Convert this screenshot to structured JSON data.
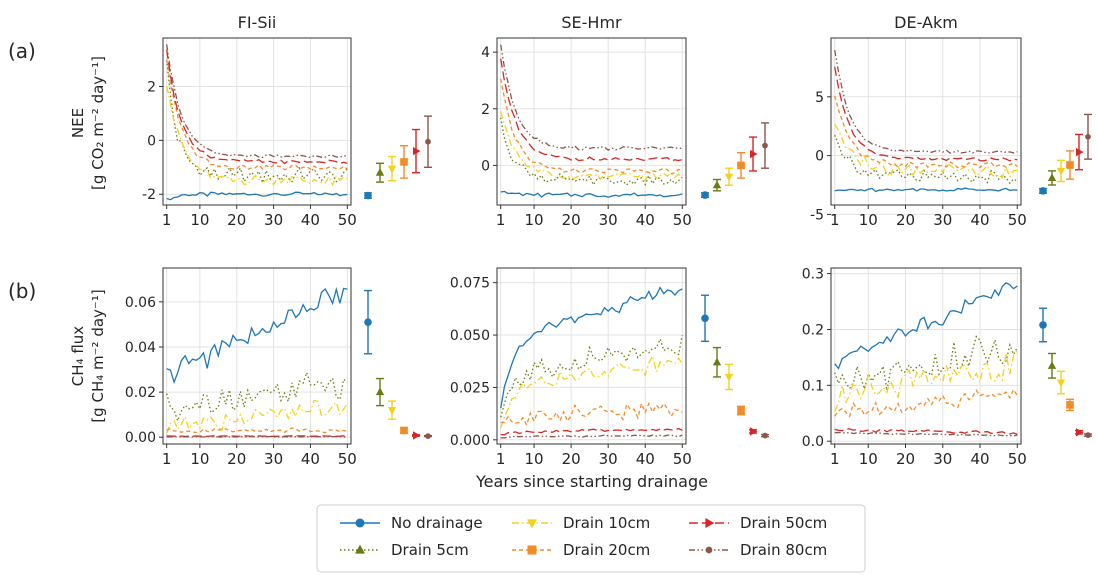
{
  "figure": {
    "panel_labels": [
      "(a)",
      "(b)"
    ],
    "shared_xlabel": "Years since starting drainage",
    "row_ylabels": [
      {
        "main": "NEE",
        "sub": "[g CO₂ m⁻² day⁻¹]"
      },
      {
        "main": "CH₄ flux",
        "sub": "[g CH₄ m⁻² day⁻¹]"
      }
    ],
    "legend": [
      {
        "label": "No drainage",
        "color": "#1f77b4",
        "marker": "circle",
        "dash": "solid"
      },
      {
        "label": "Drain 5cm",
        "color": "#6b7a12",
        "marker": "triangle-up",
        "dash": "dotted"
      },
      {
        "label": "Drain 10cm",
        "color": "#f2d21b",
        "marker": "triangle-down",
        "dash": "dashdot"
      },
      {
        "label": "Drain 20cm",
        "color": "#f28c28",
        "marker": "square",
        "dash": "dashed"
      },
      {
        "label": "Drain 50cm",
        "color": "#d62728",
        "marker": "triangle-right",
        "dash": "longdash"
      },
      {
        "label": "Drain 80cm",
        "color": "#8c564b",
        "marker": "circle-small",
        "dash": "dashdotdot"
      }
    ]
  },
  "chart_data": [
    {
      "type": "line",
      "row": 0,
      "col": 0,
      "title": "FI-Sii",
      "ylim": [
        -2.4,
        3.8
      ],
      "yticks": [
        -2,
        0,
        2
      ],
      "xlim": [
        0,
        51
      ],
      "xticks": [
        1,
        10,
        20,
        30,
        40,
        50
      ],
      "grid": true,
      "series": [
        {
          "start": -2.2,
          "end": -2.0,
          "tau": 3,
          "noise": 0.05
        },
        {
          "start": 2.8,
          "end": -1.3,
          "tau": 3,
          "noise": 0.25
        },
        {
          "start": 2.2,
          "end": -1.5,
          "tau": 4,
          "noise": 0.15
        },
        {
          "start": 3.0,
          "end": -1.0,
          "tau": 4,
          "noise": 0.08
        },
        {
          "start": 3.3,
          "end": -0.8,
          "tau": 4,
          "noise": 0.05
        },
        {
          "start": 3.6,
          "end": -0.6,
          "tau": 4,
          "noise": 0.04
        }
      ],
      "summary": [
        {
          "mean": -2.05,
          "err": 0.1
        },
        {
          "mean": -1.2,
          "err": 0.35
        },
        {
          "mean": -1.05,
          "err": 0.45
        },
        {
          "mean": -0.8,
          "err": 0.6
        },
        {
          "mean": -0.4,
          "err": 0.8
        },
        {
          "mean": -0.05,
          "err": 0.95
        }
      ]
    },
    {
      "type": "line",
      "row": 0,
      "col": 1,
      "title": "SE-Hmr",
      "ylim": [
        -1.4,
        4.5
      ],
      "yticks": [
        0,
        2,
        4
      ],
      "xlim": [
        0,
        51
      ],
      "xticks": [
        1,
        10,
        20,
        30,
        40,
        50
      ],
      "grid": true,
      "series": [
        {
          "start": -0.9,
          "end": -1.05,
          "tau": 3,
          "noise": 0.05
        },
        {
          "start": 1.5,
          "end": -0.55,
          "tau": 4,
          "noise": 0.15
        },
        {
          "start": 2.0,
          "end": -0.4,
          "tau": 4,
          "noise": 0.12
        },
        {
          "start": 3.0,
          "end": -0.2,
          "tau": 4,
          "noise": 0.08
        },
        {
          "start": 3.8,
          "end": 0.2,
          "tau": 4,
          "noise": 0.06
        },
        {
          "start": 4.3,
          "end": 0.6,
          "tau": 4,
          "noise": 0.05
        }
      ],
      "summary": [
        {
          "mean": -1.05,
          "err": 0.08
        },
        {
          "mean": -0.7,
          "err": 0.2
        },
        {
          "mean": -0.4,
          "err": 0.3
        },
        {
          "mean": 0.0,
          "err": 0.45
        },
        {
          "mean": 0.4,
          "err": 0.6
        },
        {
          "mean": 0.7,
          "err": 0.8
        }
      ]
    },
    {
      "type": "line",
      "row": 0,
      "col": 2,
      "title": "DE-Akm",
      "ylim": [
        -4.2,
        10.0
      ],
      "yticks": [
        -5,
        0,
        5
      ],
      "xlim": [
        0,
        51
      ],
      "xticks": [
        1,
        10,
        20,
        30,
        40,
        50
      ],
      "grid": true,
      "series": [
        {
          "start": -3.0,
          "end": -2.9,
          "tau": 3,
          "noise": 0.1
        },
        {
          "start": 2.0,
          "end": -1.8,
          "tau": 4,
          "noise": 0.5
        },
        {
          "start": 3.0,
          "end": -1.3,
          "tau": 4,
          "noise": 0.5
        },
        {
          "start": 5.0,
          "end": -0.8,
          "tau": 4,
          "noise": 0.2
        },
        {
          "start": 7.5,
          "end": -0.3,
          "tau": 4,
          "noise": 0.1
        },
        {
          "start": 9.0,
          "end": 0.3,
          "tau": 4,
          "noise": 0.1
        }
      ],
      "summary": [
        {
          "mean": -3.0,
          "err": 0.2
        },
        {
          "mean": -1.9,
          "err": 0.6
        },
        {
          "mean": -1.3,
          "err": 0.9
        },
        {
          "mean": -0.8,
          "err": 1.2
        },
        {
          "mean": 0.3,
          "err": 1.5
        },
        {
          "mean": 1.6,
          "err": 1.9
        }
      ]
    },
    {
      "type": "line",
      "row": 1,
      "col": 0,
      "title": "",
      "ylim": [
        -0.003,
        0.075
      ],
      "yticks": [
        0.0,
        0.02,
        0.04,
        0.06
      ],
      "xlim": [
        0,
        51
      ],
      "xticks": [
        1,
        10,
        20,
        30,
        40,
        50
      ],
      "grid": true,
      "series": [
        {
          "start": 0.028,
          "end": 0.065,
          "tau": -1,
          "noise": 0.004
        },
        {
          "start": 0.014,
          "end": 0.024,
          "tau": -1,
          "noise": 0.005
        },
        {
          "start": 0.004,
          "end": 0.014,
          "tau": -1,
          "noise": 0.003
        },
        {
          "start": 0.003,
          "end": 0.003,
          "tau": -1,
          "noise": 0.0008
        },
        {
          "start": 0.0005,
          "end": 0.0005,
          "tau": -1,
          "noise": 0.0001
        },
        {
          "start": 0.0002,
          "end": 0.0002,
          "tau": -1,
          "noise": 0.0001
        }
      ],
      "summary": [
        {
          "mean": 0.051,
          "err": 0.014
        },
        {
          "mean": 0.02,
          "err": 0.006
        },
        {
          "mean": 0.012,
          "err": 0.004
        },
        {
          "mean": 0.003,
          "err": 0.001
        },
        {
          "mean": 0.0008,
          "err": 0.0003
        },
        {
          "mean": 0.0005,
          "err": 0.0002
        }
      ]
    },
    {
      "type": "line",
      "row": 1,
      "col": 1,
      "title": "",
      "ylim": [
        -0.002,
        0.082
      ],
      "yticks": [
        0.0,
        0.025,
        0.05,
        0.075
      ],
      "xlim": [
        0,
        51
      ],
      "xticks": [
        1,
        10,
        20,
        30,
        40,
        50
      ],
      "grid": true,
      "series": [
        {
          "start": 0.015,
          "end": 0.073,
          "tau": -2,
          "noise": 0.002
        },
        {
          "start": 0.01,
          "end": 0.047,
          "tau": -3,
          "noise": 0.004
        },
        {
          "start": 0.008,
          "end": 0.038,
          "tau": -3,
          "noise": 0.003
        },
        {
          "start": 0.005,
          "end": 0.015,
          "tau": -3,
          "noise": 0.003
        },
        {
          "start": 0.002,
          "end": 0.005,
          "tau": -3,
          "noise": 0.0005
        },
        {
          "start": 0.001,
          "end": 0.002,
          "tau": -3,
          "noise": 0.0003
        }
      ],
      "summary": [
        {
          "mean": 0.058,
          "err": 0.011
        },
        {
          "mean": 0.037,
          "err": 0.007
        },
        {
          "mean": 0.03,
          "err": 0.006
        },
        {
          "mean": 0.014,
          "err": 0.002
        },
        {
          "mean": 0.004,
          "err": 0.0008
        },
        {
          "mean": 0.002,
          "err": 0.0005
        }
      ]
    },
    {
      "type": "line",
      "row": 1,
      "col": 2,
      "title": "",
      "ylim": [
        -0.005,
        0.31
      ],
      "yticks": [
        0.0,
        0.1,
        0.2,
        0.3
      ],
      "xlim": [
        0,
        51
      ],
      "xticks": [
        1,
        10,
        20,
        30,
        40,
        50
      ],
      "grid": true,
      "series": [
        {
          "start": 0.14,
          "end": 0.28,
          "tau": -1,
          "noise": 0.01
        },
        {
          "start": 0.1,
          "end": 0.17,
          "tau": -1,
          "noise": 0.025
        },
        {
          "start": 0.08,
          "end": 0.14,
          "tau": -1,
          "noise": 0.02
        },
        {
          "start": 0.05,
          "end": 0.085,
          "tau": -1,
          "noise": 0.01
        },
        {
          "start": 0.02,
          "end": 0.015,
          "tau": -1,
          "noise": 0.002
        },
        {
          "start": 0.015,
          "end": 0.01,
          "tau": -1,
          "noise": 0.001
        }
      ],
      "summary": [
        {
          "mean": 0.208,
          "err": 0.03
        },
        {
          "mean": 0.135,
          "err": 0.022
        },
        {
          "mean": 0.105,
          "err": 0.02
        },
        {
          "mean": 0.065,
          "err": 0.01
        },
        {
          "mean": 0.016,
          "err": 0.003
        },
        {
          "mean": 0.011,
          "err": 0.002
        }
      ]
    }
  ]
}
